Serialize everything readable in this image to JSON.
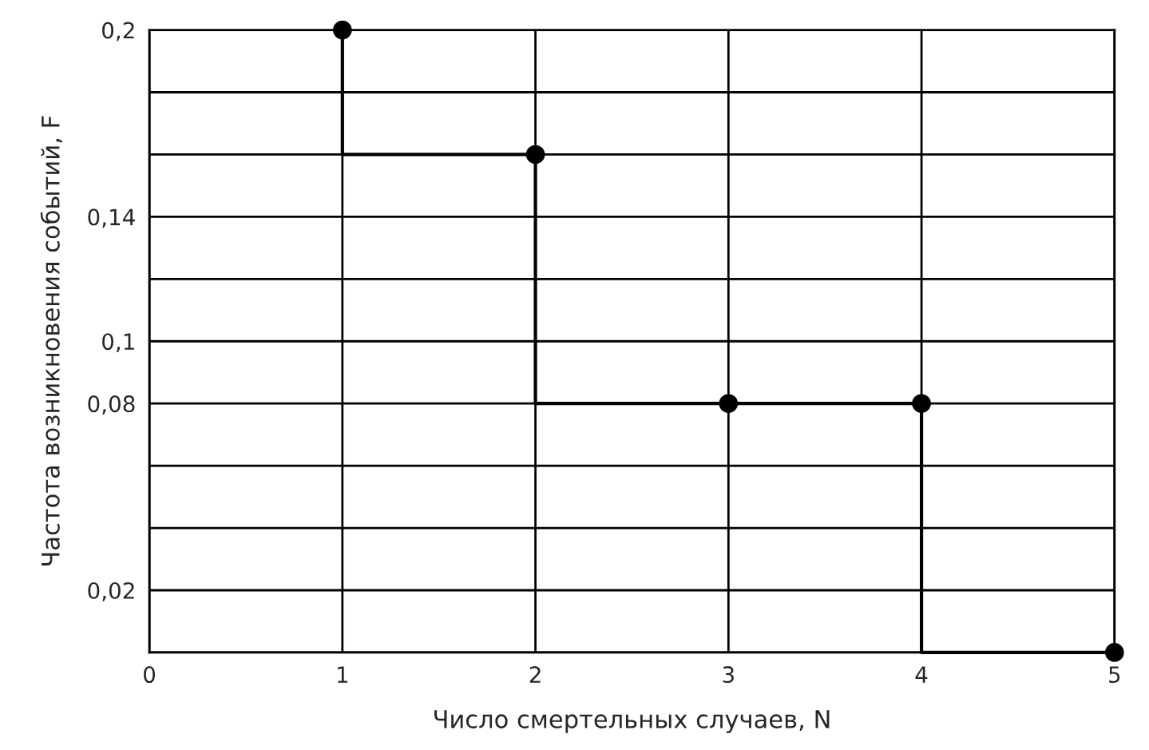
{
  "chart_data": {
    "type": "step",
    "xlabel": "Число смертельных случаев, N",
    "ylabel": "Частота возникновения событий, F",
    "x": [
      1,
      2,
      3,
      4,
      5
    ],
    "series": [
      {
        "color": "#000000",
        "values": [
          0.2,
          0.16,
          0.08,
          0.08,
          0
        ]
      }
    ],
    "xlim": [
      0,
      5
    ],
    "xticks": [
      0,
      1,
      2,
      3,
      4,
      5
    ],
    "ylim": [
      0,
      0.2
    ],
    "yticks": [
      {
        "value": 0,
        "label": null
      },
      {
        "value": 0.02,
        "label": "0,02"
      },
      {
        "value": 0.04,
        "label": null
      },
      {
        "value": 0.06,
        "label": null
      },
      {
        "value": 0.08,
        "label": "0,08"
      },
      {
        "value": 0.1,
        "label": "0,1"
      },
      {
        "value": 0.12,
        "label": null
      },
      {
        "value": 0.14,
        "label": "0,14"
      },
      {
        "value": 0.16,
        "label": null
      },
      {
        "value": 0.18,
        "label": null
      },
      {
        "value": 0.2,
        "label": "0,2"
      }
    ],
    "grid": true,
    "marker": "circle",
    "line_style": "solid",
    "legend": false
  }
}
